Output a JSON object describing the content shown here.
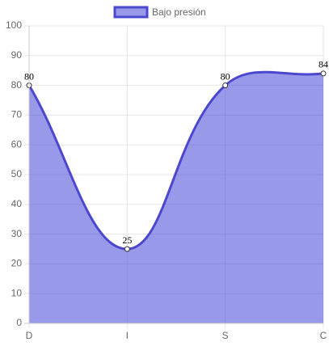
{
  "chart_data": {
    "type": "line",
    "categories": [
      "D",
      "I",
      "S",
      "C"
    ],
    "series": [
      {
        "name": "Bajo presión",
        "color": "#4b48cf",
        "fill": "rgba(90, 90, 220, 0.62)",
        "values": [
          80,
          25,
          80,
          84
        ]
      }
    ],
    "ylim": [
      0,
      100
    ],
    "yticks": [
      0,
      10,
      20,
      30,
      40,
      50,
      60,
      70,
      80,
      90,
      100
    ],
    "grid": true,
    "area": true,
    "smooth": true,
    "legend": "top",
    "data_labels": true
  }
}
